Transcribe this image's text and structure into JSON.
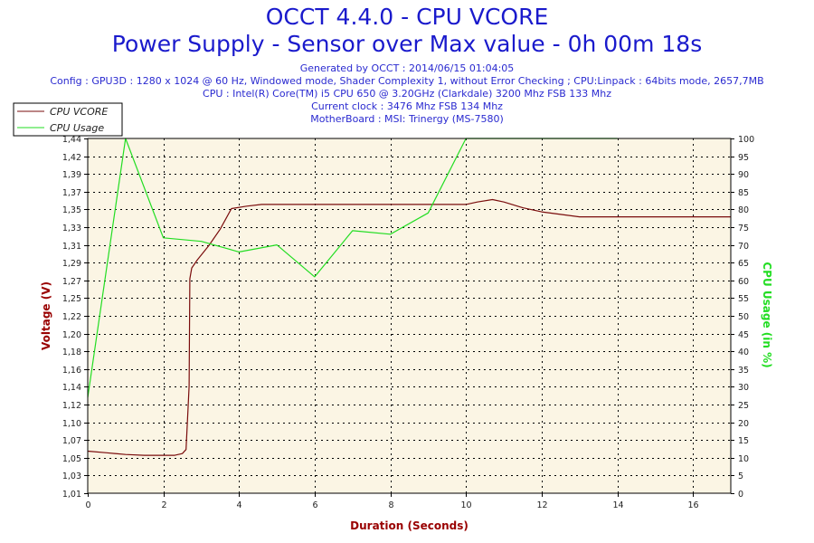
{
  "header": {
    "title_line1": "OCCT 4.4.0 - CPU VCORE",
    "title_line2": "Power Supply - Sensor over Max value - 0h 00m 18s",
    "info_lines": [
      "Generated by OCCT : 2014/06/15 01:04:05",
      "Config : GPU3D : 1280 x 1024 @ 60 Hz, Windowed mode, Shader Complexity 1, without Error Checking ; CPU:Linpack : 64bits mode, 2657,7MB",
      "CPU : Intel(R) Core(TM) i5 CPU 650 @ 3.20GHz (Clarkdale) 3200 Mhz FSB 133 Mhz",
      "Current clock : 3476 Mhz FSB 134 Mhz",
      "MotherBoard : MSI: Trinergy (MS-7580)"
    ]
  },
  "colors": {
    "title": "#1a1acc",
    "plot_bg": "#fbf5e4",
    "grid": "#000000",
    "vcore": "#7a0c0c",
    "usage": "#22dd22",
    "xlabel": "#990000",
    "ylabel_left": "#990000",
    "ylabel_right": "#22dd22"
  },
  "chart_data": {
    "type": "line",
    "xlabel": "Duration (Seconds)",
    "ylabel": "Voltage (V)",
    "ylabel_right": "CPU Usage (in %)",
    "xlim": [
      0,
      17
    ],
    "ylim": [
      1.01,
      1.44
    ],
    "ylim_right": [
      0,
      100
    ],
    "x_ticks": [
      "0",
      "2",
      "4",
      "6",
      "8",
      "10",
      "12",
      "14",
      "16"
    ],
    "x_tick_values": [
      0,
      2,
      4,
      6,
      8,
      10,
      12,
      14,
      16
    ],
    "y_ticks": [
      "1,01",
      "1,03",
      "1,05",
      "1,07",
      "1,10",
      "1,12",
      "1,14",
      "1,16",
      "1,18",
      "1,20",
      "1,22",
      "1,25",
      "1,27",
      "1,29",
      "1,31",
      "1,33",
      "1,35",
      "1,37",
      "1,39",
      "1,42",
      "1,44"
    ],
    "y_tick_values": [
      1.01,
      1.0315,
      1.053,
      1.0745,
      1.096,
      1.1175,
      1.139,
      1.1605,
      1.182,
      1.2035,
      1.225,
      1.2465,
      1.268,
      1.2895,
      1.311,
      1.3325,
      1.354,
      1.3755,
      1.397,
      1.4185,
      1.44
    ],
    "y_right_ticks": [
      "0",
      "5",
      "10",
      "15",
      "20",
      "25",
      "30",
      "35",
      "40",
      "45",
      "50",
      "55",
      "60",
      "65",
      "70",
      "75",
      "80",
      "85",
      "90",
      "95",
      "100"
    ],
    "y_right_tick_values": [
      0,
      5,
      10,
      15,
      20,
      25,
      30,
      35,
      40,
      45,
      50,
      55,
      60,
      65,
      70,
      75,
      80,
      85,
      90,
      95,
      100
    ],
    "grid": true,
    "legend_position": "top-left",
    "series": [
      {
        "name": "CPU VCORE",
        "axis": "left",
        "x": [
          0,
          0.5,
          1.0,
          1.5,
          2.0,
          2.3,
          2.5,
          2.6,
          2.65,
          2.68,
          2.7,
          2.75,
          2.9,
          3.2,
          3.5,
          3.8,
          4.2,
          4.6,
          5.0,
          6.0,
          7.0,
          8.0,
          9.0,
          10.0,
          10.3,
          10.7,
          11.0,
          11.5,
          12.0,
          12.5,
          13.0,
          14.0,
          15.0,
          16.0,
          17.0
        ],
        "y": [
          1.061,
          1.059,
          1.057,
          1.056,
          1.056,
          1.056,
          1.058,
          1.063,
          1.11,
          1.14,
          1.27,
          1.283,
          1.293,
          1.31,
          1.33,
          1.355,
          1.358,
          1.36,
          1.36,
          1.36,
          1.36,
          1.36,
          1.36,
          1.36,
          1.363,
          1.366,
          1.363,
          1.356,
          1.351,
          1.348,
          1.345,
          1.345,
          1.345,
          1.345,
          1.345
        ]
      },
      {
        "name": "CPU Usage",
        "axis": "right",
        "x": [
          0,
          1.0,
          2.0,
          3.0,
          4.0,
          5.0,
          6.0,
          7.0,
          8.0,
          9.0,
          10.0,
          11.0,
          12.0,
          13.0,
          14.0
        ],
        "y": [
          27,
          100,
          72,
          71,
          68,
          70,
          61,
          74,
          73,
          79,
          100,
          100,
          100,
          100,
          100
        ]
      }
    ]
  }
}
